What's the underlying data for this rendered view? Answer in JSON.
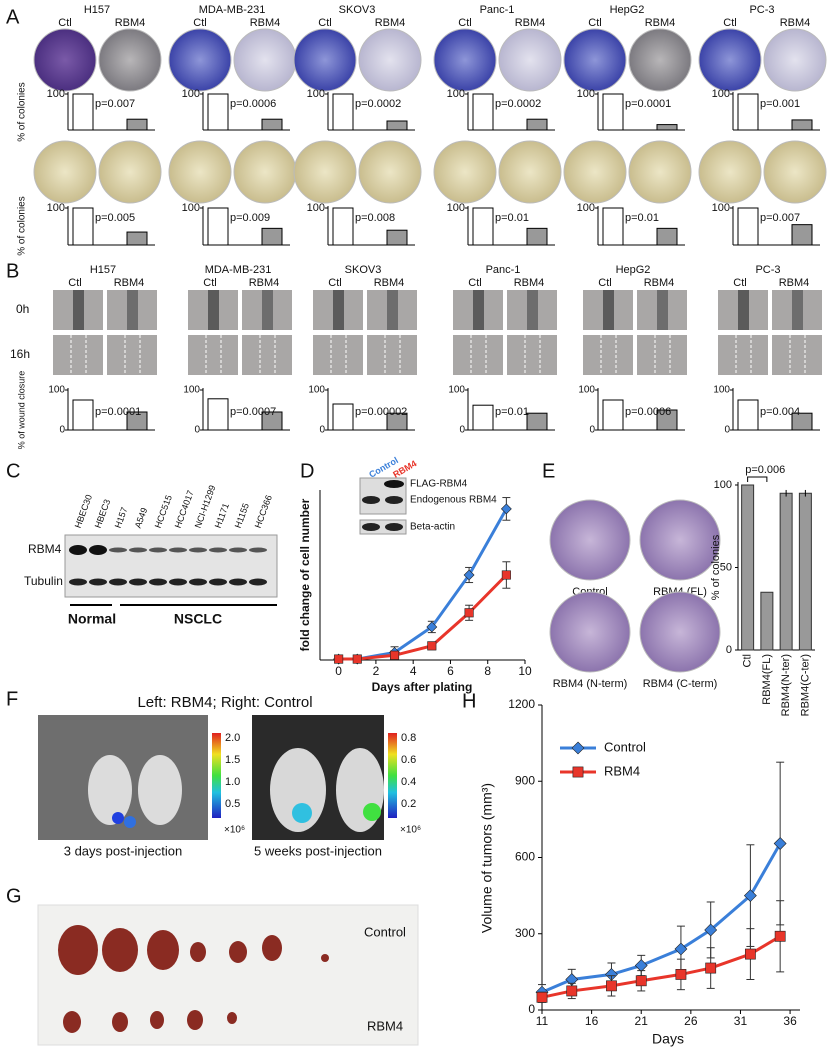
{
  "A": {
    "label": "A",
    "y_label": "% of colonies",
    "ylim": [
      0,
      100
    ],
    "yticks": [
      100
    ],
    "conditions": [
      "Ctl",
      "RBM4"
    ],
    "cell_lines": [
      "H157",
      "MDA-MB-231",
      "SKOV3",
      "Panc-1",
      "HepG2",
      "PC-3"
    ],
    "bar_colors": [
      "#ffffff",
      "#999999"
    ],
    "assays": [
      {
        "type": "bar",
        "values": [
          [
            100,
            30
          ],
          [
            100,
            30
          ],
          [
            100,
            25
          ],
          [
            100,
            30
          ],
          [
            100,
            15
          ],
          [
            100,
            28
          ]
        ],
        "p_values": [
          "p=0.007",
          "p=0.0006",
          "p=0.0002",
          "p=0.0002",
          "p=0.0001",
          "p=0.001"
        ]
      },
      {
        "type": "bar",
        "values": [
          [
            100,
            35
          ],
          [
            100,
            45
          ],
          [
            100,
            40
          ],
          [
            100,
            45
          ],
          [
            100,
            45
          ],
          [
            100,
            55
          ]
        ],
        "p_values": [
          "p=0.005",
          "p=0.009",
          "p=0.008",
          "p=0.01",
          "p=0.01",
          "p=0.007"
        ]
      }
    ]
  },
  "B": {
    "label": "B",
    "type": "bar",
    "cell_lines": [
      "H157",
      "MDA-MB-231",
      "SKOV3",
      "Panc-1",
      "HepG2",
      "PC-3"
    ],
    "conditions": [
      "Ctl",
      "RBM4"
    ],
    "timepoints": [
      "0h",
      "16h"
    ],
    "y_label": "% of wound closure",
    "ylim": [
      0,
      100
    ],
    "yticks": [
      0,
      100
    ],
    "bar_colors": [
      "#ffffff",
      "#999999"
    ],
    "values": [
      [
        75,
        45
      ],
      [
        78,
        45
      ],
      [
        65,
        42
      ],
      [
        62,
        42
      ],
      [
        75,
        50
      ],
      [
        75,
        42
      ]
    ],
    "p_values": [
      "p=0.0001",
      "p=0.0007",
      "p=0.00002",
      "p=0.01",
      "p=0.0006",
      "p=0.004"
    ]
  },
  "C": {
    "label": "C",
    "lanes": [
      "HBEC30",
      "HBEC3",
      "H157",
      "A549",
      "HCC515",
      "HCC4017",
      "NCI-H1299",
      "H1171",
      "H1155",
      "HCC366"
    ],
    "rows": [
      "RBM4",
      "Tubulin"
    ],
    "groups": [
      "Normal",
      "NSCLC"
    ]
  },
  "D": {
    "label": "D",
    "type": "line",
    "x_label": "Days after plating",
    "y_label": "fold change of cell number",
    "x": [
      0,
      1,
      3,
      5,
      7,
      9
    ],
    "xlim": [
      -1,
      10
    ],
    "xticks": [
      0,
      2,
      4,
      6,
      8,
      10
    ],
    "ylim": [
      0,
      180
    ],
    "series": [
      {
        "name": "Control",
        "color": "#3a7fd9",
        "marker": "diamond",
        "values": [
          1,
          1,
          8,
          35,
          90,
          160
        ],
        "errors": [
          0.5,
          0.5,
          6,
          6,
          8,
          12
        ]
      },
      {
        "name": "RBM4",
        "color": "#e8352a",
        "marker": "square",
        "values": [
          1,
          1,
          5,
          15,
          50,
          90
        ],
        "errors": [
          0.5,
          0.5,
          4,
          4,
          8,
          14
        ]
      }
    ],
    "inset_bands": [
      "FLAG-RBM4",
      "Endogenous RBM4",
      "Beta-actin"
    ]
  },
  "E": {
    "label": "E",
    "images": [
      "Control",
      "RBM4 (FL)",
      "RBM4 (N-term)",
      "RBM4 (C-term)"
    ],
    "chart": {
      "type": "bar",
      "categories": [
        "Ctl",
        "RBM4(FL)",
        "RBM4(N-ter)",
        "RBM4(C-ter)"
      ],
      "values": [
        100,
        35,
        95,
        95
      ],
      "errors": [
        0,
        0,
        2,
        2
      ],
      "color": "#999999",
      "ylim": [
        0,
        100
      ],
      "yticks": [
        0,
        50,
        100
      ],
      "y_label": "% of colonies",
      "annotation": "p=0.006"
    }
  },
  "F": {
    "label": "F",
    "title": "Left: RBM4;  Right: Control",
    "images": [
      {
        "caption": "3 days post-injection",
        "colorbar_ticks": [
          "2.0",
          "1.5",
          "1.0",
          "0.5"
        ],
        "colorbar_unit": "×10⁶"
      },
      {
        "caption": "5 weeks post-injection",
        "colorbar_ticks": [
          "0.8",
          "0.6",
          "0.4",
          "0.2"
        ],
        "colorbar_unit": "×10⁶"
      }
    ]
  },
  "G": {
    "label": "G",
    "groups": [
      "Control",
      "RBM4"
    ]
  },
  "H": {
    "label": "H",
    "type": "line",
    "x_label": "Days",
    "y_label": "Volume of tumors (mm³)",
    "legend": "upper left",
    "x": [
      11,
      14,
      18,
      21,
      25,
      28,
      32,
      35
    ],
    "xlim": [
      11,
      37
    ],
    "xticks": [
      11,
      16,
      21,
      26,
      31,
      36
    ],
    "ylim": [
      0,
      1200
    ],
    "yticks": [
      0,
      300,
      600,
      900,
      1200
    ],
    "series": [
      {
        "name": "Control",
        "color": "#3a7fd9",
        "marker": "diamond",
        "values": [
          70,
          120,
          140,
          175,
          240,
          315,
          450,
          655
        ],
        "errors": [
          30,
          40,
          45,
          40,
          90,
          110,
          200,
          320
        ]
      },
      {
        "name": "RBM4",
        "color": "#e8352a",
        "marker": "square",
        "values": [
          50,
          75,
          95,
          115,
          140,
          165,
          220,
          290
        ],
        "errors": [
          20,
          30,
          40,
          40,
          60,
          80,
          100,
          140
        ]
      }
    ]
  }
}
